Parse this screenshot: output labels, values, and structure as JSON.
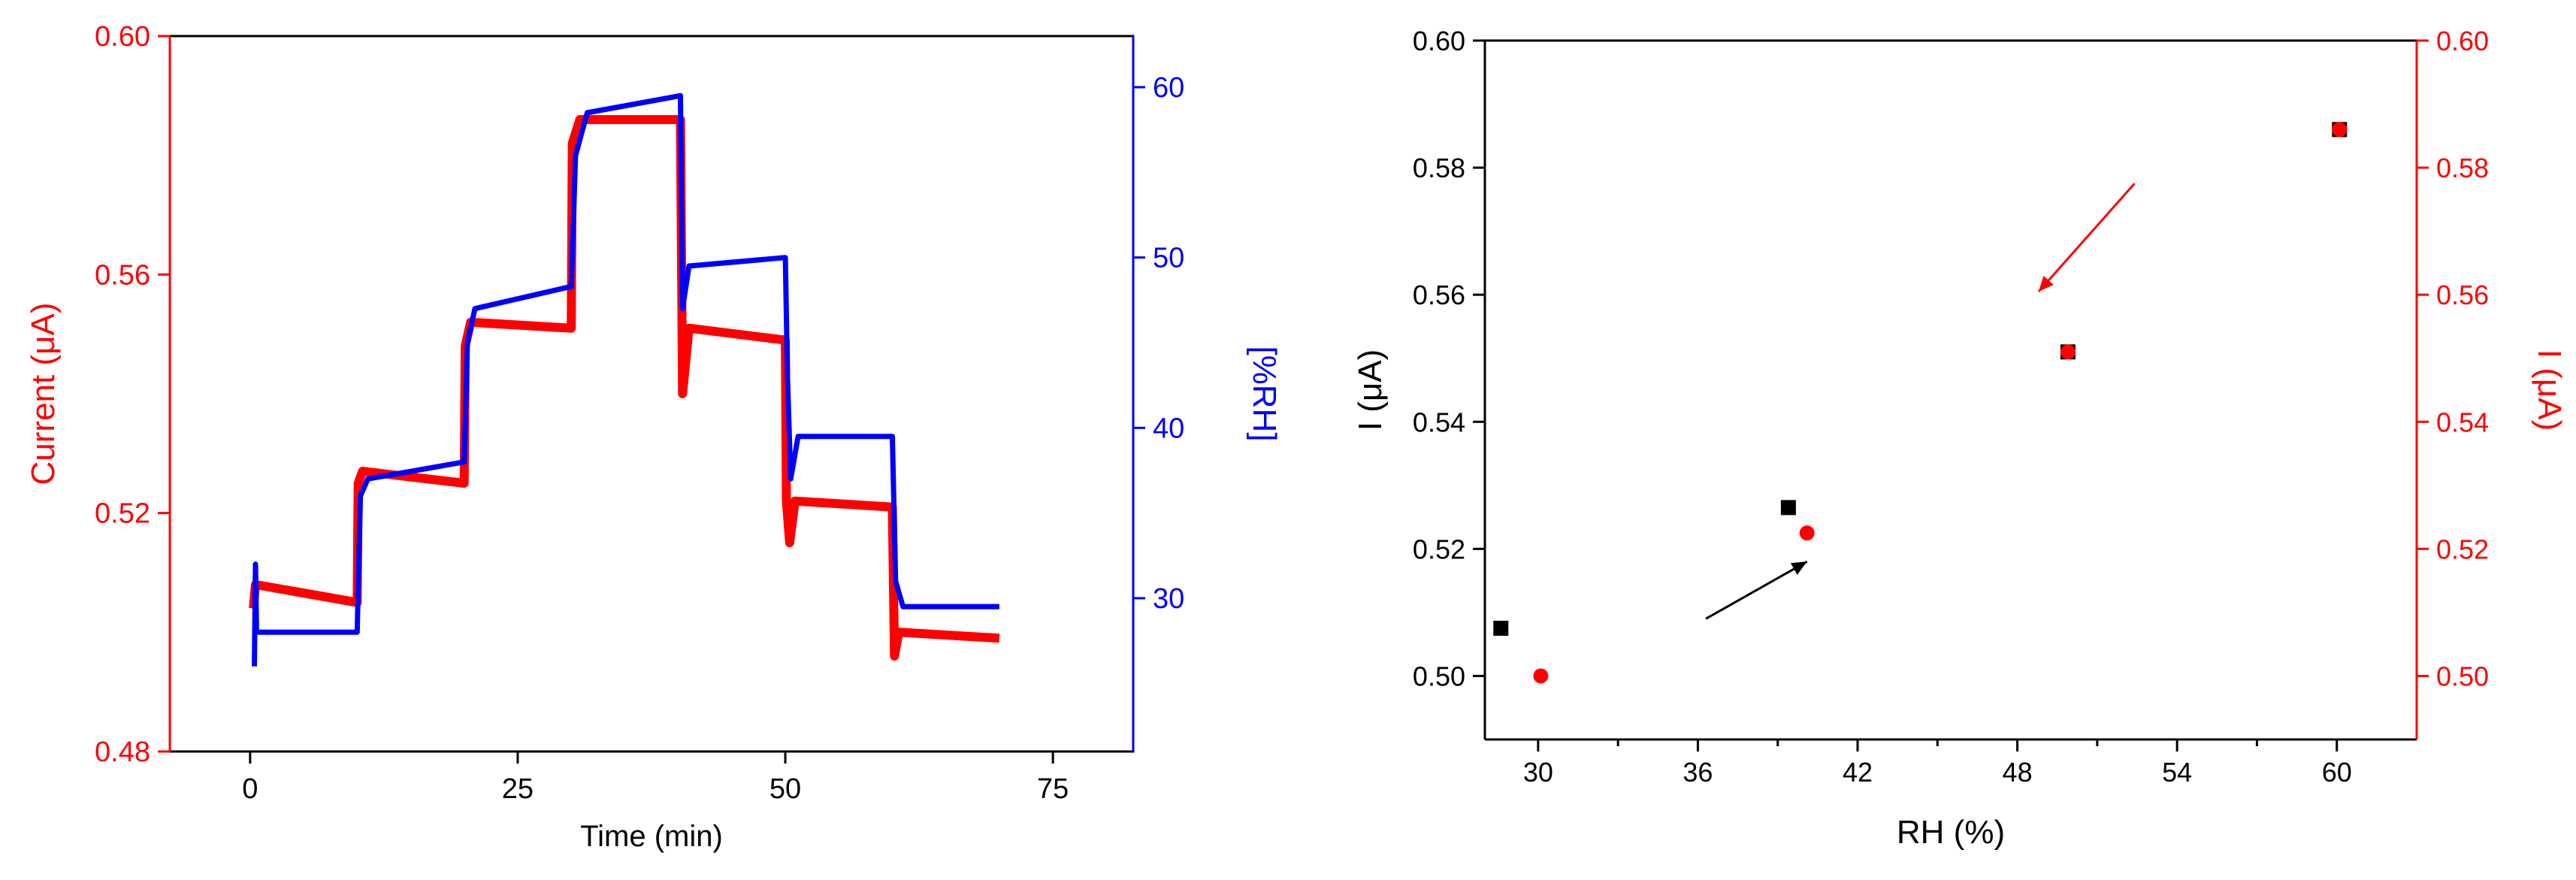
{
  "chart_data": [
    {
      "type": "line",
      "xlabel": "Time (min)",
      "ylabel": "Current (μA)",
      "y2label": "[%RH]",
      "xlim": [
        -7.5,
        82.5
      ],
      "ylim": [
        0.48,
        0.6
      ],
      "y2lim": [
        21,
        63
      ],
      "x_ticks": [
        0,
        25,
        50,
        75
      ],
      "x_tick_labels": [
        "0",
        "25",
        "50",
        "75"
      ],
      "y_ticks": [
        0.48,
        0.52,
        0.56,
        0.6
      ],
      "y_tick_labels": [
        "0.48",
        "0.52",
        "0.56",
        "0.60"
      ],
      "y2_ticks": [
        30,
        40,
        50,
        60
      ],
      "y2_tick_labels": [
        "30",
        "40",
        "50",
        "60"
      ],
      "grid": false,
      "colors": {
        "current": "#ff0000",
        "rh": "#0000ff",
        "axis": "#000000",
        "left_axis_text": "#ff0000",
        "right_axis_text": "#0000ff"
      },
      "series": [
        {
          "axis": "left",
          "color": "#ff0000",
          "x": [
            0.3,
            0.5,
            10,
            10.1,
            10.5,
            20,
            20.1,
            20.6,
            30,
            30.1,
            30.8,
            40.2,
            40.4,
            41,
            50,
            50.1,
            50.4,
            50.9,
            60,
            60.2,
            60.6,
            70
          ],
          "y": [
            0.504,
            0.508,
            0.505,
            0.525,
            0.527,
            0.525,
            0.548,
            0.552,
            0.551,
            0.582,
            0.586,
            0.586,
            0.54,
            0.551,
            0.549,
            0.522,
            0.515,
            0.522,
            0.521,
            0.496,
            0.5,
            0.499
          ]
        },
        {
          "axis": "right",
          "color": "#0000ff",
          "x": [
            0.4,
            0.5,
            0.6,
            1,
            10,
            10.3,
            11,
            20,
            20.3,
            21,
            30,
            30.4,
            31.5,
            40.2,
            40.4,
            41,
            50,
            50.2,
            50.5,
            51.2,
            60,
            60.3,
            61,
            70
          ],
          "y": [
            26,
            32,
            28,
            28,
            28,
            36,
            37,
            38,
            45,
            47,
            48.3,
            56,
            58.5,
            59.5,
            47,
            49.5,
            50,
            43,
            37,
            39.5,
            39.5,
            31,
            29.5,
            29.5
          ]
        }
      ]
    },
    {
      "type": "scatter",
      "xlabel": "RH (%)",
      "ylabel": "I (μA)",
      "y2label": "I (μA)",
      "xlim": [
        28,
        63
      ],
      "ylim": [
        0.49,
        0.6
      ],
      "y2lim": [
        0.49,
        0.6
      ],
      "x_ticks": [
        30,
        36,
        42,
        48,
        54,
        60
      ],
      "x_tick_labels": [
        "30",
        "36",
        "42",
        "48",
        "54",
        "60"
      ],
      "y_ticks": [
        0.5,
        0.52,
        0.54,
        0.56,
        0.58,
        0.6
      ],
      "y_tick_labels": [
        "0.50",
        "0.52",
        "0.54",
        "0.56",
        "0.58",
        "0.60"
      ],
      "y2_ticks": [
        0.5,
        0.52,
        0.54,
        0.56,
        0.58,
        0.6
      ],
      "y2_tick_labels": [
        "0.50",
        "0.52",
        "0.54",
        "0.56",
        "0.58",
        "0.60"
      ],
      "grid": false,
      "colors": {
        "black_series": "#000000",
        "red_series": "#ff0000",
        "axis": "#000000",
        "right_axis": "#ff0000"
      },
      "series": [
        {
          "axis": "left",
          "marker": "square",
          "color": "#000000",
          "x": [
            28.6,
            39.4,
            49.9,
            60.1
          ],
          "y": [
            0.5075,
            0.5265,
            0.551,
            0.586
          ]
        },
        {
          "axis": "right",
          "marker": "circle",
          "color": "#ff0000",
          "x": [
            30.1,
            40.1,
            49.9,
            60.1
          ],
          "y": [
            0.5,
            0.5225,
            0.551,
            0.586
          ]
        }
      ],
      "annotations": [
        {
          "type": "arrow",
          "color": "#000000",
          "from": [
            36.3,
            0.509
          ],
          "to": [
            40.1,
            0.518
          ]
        },
        {
          "type": "arrow",
          "color": "#ff0000",
          "from": [
            52.4,
            0.5775
          ],
          "to": [
            48.8,
            0.5605
          ]
        }
      ]
    }
  ]
}
